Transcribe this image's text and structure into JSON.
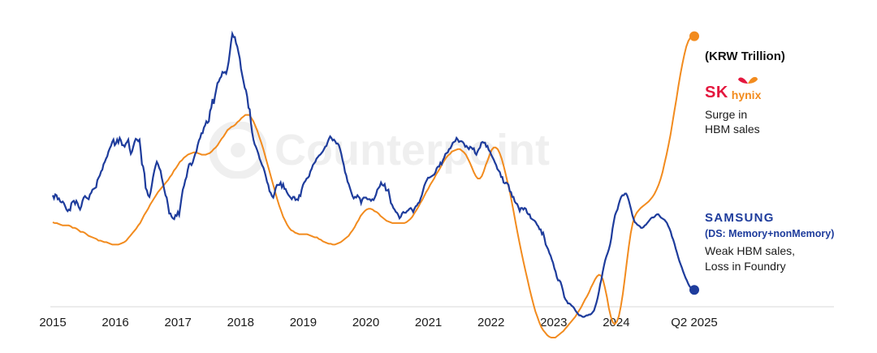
{
  "chart_data": {
    "type": "line",
    "unit_label": "(KRW Trillion)",
    "x_tick_labels": [
      "2015",
      "2016",
      "2017",
      "2018",
      "2019",
      "2020",
      "2021",
      "2022",
      "2023",
      "2024",
      "Q2 2025"
    ],
    "grid": false,
    "series": [
      {
        "name": "SAMSUNG",
        "sub_label": "(DS: Memory+nonMemory)",
        "note_lines": [
          "Weak HBM sales,",
          "Loss in Foundry"
        ],
        "color": "#1e3c9c",
        "values": [
          0.3,
          0.26,
          0.31,
          0.3,
          0.25,
          0.26,
          0.22,
          0.21,
          0.22,
          0.2,
          0.16,
          0.12,
          0.1,
          0.12,
          0.11,
          0.2,
          0.22,
          0.23,
          0.19,
          0.23,
          0.2,
          0.15,
          0.12,
          0.16,
          0.23,
          0.27,
          0.29,
          0.27,
          0.26,
          0.25,
          0.31,
          0.33,
          0.37,
          0.38,
          0.39,
          0.4,
          0.49,
          0.52,
          0.55,
          0.6,
          0.62,
          0.69,
          0.72,
          0.76,
          0.79,
          0.85,
          0.89,
          0.92,
          0.97,
          1.0,
          0.93,
          0.95,
          1.0,
          0.96,
          1.02,
          0.99,
          0.93,
          0.93,
          0.91,
          0.95,
          0.97,
          1.0,
          0.89,
          0.82,
          0.85,
          0.91,
          0.97,
          1.01,
          1.0,
          0.98,
          1.0,
          0.86,
          0.69,
          0.66,
          0.57,
          0.39,
          0.36,
          0.3,
          0.28,
          0.34,
          0.43,
          0.53,
          0.61,
          0.67,
          0.72,
          0.69,
          0.64,
          0.61,
          0.52,
          0.45,
          0.37,
          0.3,
          0.27,
          0.18,
          0.07,
          0.07,
          0.03,
          0.01,
          0.0,
          0.05,
          0.04,
          0.09,
          0.05,
          0.16,
          0.27,
          0.37,
          0.42,
          0.49,
          0.53,
          0.62,
          0.69,
          0.7,
          0.68,
          0.71,
          0.77,
          0.82,
          0.85,
          0.93,
          0.99,
          1.02,
          1.08,
          1.08,
          1.15,
          1.18,
          1.23,
          1.21,
          1.23,
          1.36,
          1.4,
          1.51,
          1.45,
          1.55,
          1.63,
          1.71,
          1.73,
          1.77,
          1.79,
          1.85,
          1.84,
          1.85,
          1.83,
          1.89,
          1.98,
          2.1,
          2.23,
          2.33,
          2.29,
          2.29,
          2.21,
          2.17,
          2.09,
          2.02,
          1.89,
          1.81,
          1.73,
          1.65,
          1.62,
          1.54,
          1.4,
          1.38,
          1.21,
          1.09,
          1.0,
          0.94,
          0.91,
          0.87,
          0.82,
          0.76,
          0.72,
          0.68,
          0.65,
          0.6,
          0.54,
          0.47,
          0.43,
          0.35,
          0.33,
          0.29,
          0.27,
          0.32,
          0.39,
          0.43,
          0.43,
          0.43,
          0.46,
          0.4,
          0.44,
          0.38,
          0.38,
          0.34,
          0.31,
          0.29,
          0.27,
          0.25,
          0.28,
          0.28,
          0.24,
          0.25,
          0.24,
          0.3,
          0.29,
          0.37,
          0.43,
          0.46,
          0.48,
          0.51,
          0.52,
          0.54,
          0.6,
          0.63,
          0.68,
          0.7,
          0.72,
          0.76,
          0.78,
          0.8,
          0.81,
          0.83,
          0.85,
          0.88,
          0.91,
          0.92,
          0.97,
          1.01,
          1.04,
          1.02,
          0.99,
          1.0,
          0.98,
          0.95,
          0.95,
          0.93,
          0.88,
          0.82,
          0.74,
          0.68,
          0.59,
          0.55,
          0.47,
          0.44,
          0.39,
          0.34,
          0.29,
          0.26,
          0.28,
          0.27,
          0.3,
          0.28,
          0.26,
          0.2,
          0.25,
          0.27,
          0.27,
          0.27,
          0.25,
          0.25,
          0.25,
          0.23,
          0.25,
          0.24,
          0.27,
          0.31,
          0.37,
          0.39,
          0.41,
          0.46,
          0.43,
          0.42,
          0.44,
          0.36,
          0.36,
          0.37,
          0.29,
          0.2,
          0.18,
          0.14,
          0.12,
          0.09,
          0.08,
          0.05,
          0.01,
          0.03,
          0.07,
          0.09,
          0.08,
          0.08,
          0.1,
          0.11,
          0.13,
          0.14,
          0.12,
          0.09,
          0.13,
          0.16,
          0.17,
          0.2,
          0.21,
          0.26,
          0.3,
          0.36,
          0.42,
          0.46,
          0.49,
          0.52,
          0.52,
          0.53,
          0.54,
          0.55,
          0.56,
          0.59,
          0.64,
          0.66,
          0.66,
          0.71,
          0.69,
          0.74,
          0.77,
          0.82,
          0.83,
          0.84,
          0.88,
          0.89,
          0.92,
          0.96,
          0.97,
          0.98,
          1.02,
          1.0,
          0.97,
          0.98,
          0.98,
          0.97,
          0.95,
          0.91,
          0.92,
          0.9,
          0.88,
          0.91,
          0.9,
          0.88,
          0.89,
          0.83,
          0.81,
          0.85,
          0.88,
          0.9,
          0.96,
          0.97,
          0.96,
          0.96,
          0.91,
          0.92,
          0.87,
          0.85,
          0.81,
          0.78,
          0.75,
          0.71,
          0.68,
          0.63,
          0.61,
          0.59,
          0.53,
          0.53,
          0.46,
          0.45,
          0.46,
          0.45,
          0.43,
          0.35,
          0.34,
          0.28,
          0.28,
          0.22,
          0.2,
          0.19,
          0.15,
          0.1,
          0.14,
          0.14,
          0.12,
          0.14,
          0.13,
          0.08,
          0.06,
          0.06,
          0.01,
          0.0,
          -0.01,
          -0.02,
          -0.04,
          -0.07,
          -0.09,
          -0.13,
          -0.13,
          -0.19,
          -0.17,
          -0.24,
          -0.32,
          -0.35,
          -0.38,
          -0.43,
          -0.46,
          -0.51,
          -0.55,
          -0.62,
          -0.66,
          -0.73,
          -0.77,
          -0.77,
          -0.79,
          -0.84,
          -0.9,
          -0.98,
          -1.01,
          -1.03,
          -1.06,
          -1.06,
          -1.07,
          -1.09,
          -1.1,
          -1.12,
          -1.15,
          -1.17,
          -1.19,
          -1.21,
          -1.21,
          -1.22,
          -1.23,
          -1.23,
          -1.22,
          -1.21,
          -1.21,
          -1.2,
          -1.2,
          -1.19,
          -1.17,
          -1.15,
          -1.1,
          -1.05,
          -0.99,
          -0.91,
          -0.82,
          -0.76,
          -0.67,
          -0.59,
          -0.52,
          -0.47,
          -0.43,
          -0.38,
          -0.32,
          -0.24,
          -0.12,
          -0.03,
          0.05,
          0.09,
          0.12,
          0.19,
          0.24,
          0.28,
          0.3,
          0.3,
          0.32,
          0.32,
          0.29,
          0.24,
          0.18,
          0.12,
          0.05,
          0.0,
          -0.04,
          -0.05,
          -0.07,
          -0.08,
          -0.09,
          -0.11,
          -0.11,
          -0.1,
          -0.08,
          -0.07,
          -0.05,
          -0.03,
          -0.01,
          0.01,
          0.02,
          0.02,
          0.03,
          0.05,
          0.06,
          0.06,
          0.04,
          0.02,
          0.01,
          0.0,
          -0.01,
          -0.03,
          -0.05,
          -0.09,
          -0.12,
          -0.16,
          -0.22,
          -0.26,
          -0.31,
          -0.37,
          -0.42,
          -0.48,
          -0.53,
          -0.57,
          -0.61,
          -0.66,
          -0.7,
          -0.74,
          -0.77,
          -0.81,
          -0.84,
          -0.86,
          -0.87,
          -0.87,
          -0.89
        ]
      },
      {
        "name": "SK hynix",
        "note_lines": [
          "Surge in",
          "HBM sales"
        ],
        "color": "#f28b1e",
        "values": [
          -0.04,
          -0.05,
          -0.05,
          -0.06,
          -0.07,
          -0.08,
          -0.08,
          -0.08,
          -0.08,
          -0.09,
          -0.11,
          -0.11,
          -0.12,
          -0.14,
          -0.16,
          -0.16,
          -0.17,
          -0.19,
          -0.21,
          -0.22,
          -0.23,
          -0.24,
          -0.25,
          -0.27,
          -0.27,
          -0.28,
          -0.29,
          -0.29,
          -0.3,
          -0.31,
          -0.32,
          -0.32,
          -0.32,
          -0.32,
          -0.31,
          -0.3,
          -0.29,
          -0.27,
          -0.24,
          -0.21,
          -0.18,
          -0.15,
          -0.12,
          -0.08,
          -0.05,
          0.0,
          0.05,
          0.09,
          0.13,
          0.18,
          0.22,
          0.26,
          0.3,
          0.34,
          0.37,
          0.4,
          0.43,
          0.46,
          0.49,
          0.53,
          0.56,
          0.61,
          0.64,
          0.68,
          0.72,
          0.74,
          0.77,
          0.79,
          0.81,
          0.82,
          0.83,
          0.84,
          0.84,
          0.83,
          0.82,
          0.81,
          0.81,
          0.81,
          0.82,
          0.83,
          0.85,
          0.88,
          0.9,
          0.93,
          0.97,
          1.01,
          1.04,
          1.08,
          1.12,
          1.14,
          1.16,
          1.17,
          1.19,
          1.22,
          1.24,
          1.27,
          1.29,
          1.31,
          1.31,
          1.31,
          1.27,
          1.23,
          1.17,
          1.11,
          1.03,
          0.96,
          0.88,
          0.79,
          0.7,
          0.61,
          0.52,
          0.43,
          0.34,
          0.25,
          0.17,
          0.1,
          0.03,
          -0.02,
          -0.07,
          -0.11,
          -0.14,
          -0.15,
          -0.17,
          -0.18,
          -0.19,
          -0.19,
          -0.19,
          -0.19,
          -0.19,
          -0.2,
          -0.21,
          -0.22,
          -0.23,
          -0.23,
          -0.25,
          -0.26,
          -0.28,
          -0.29,
          -0.3,
          -0.31,
          -0.31,
          -0.32,
          -0.32,
          -0.31,
          -0.3,
          -0.29,
          -0.27,
          -0.25,
          -0.23,
          -0.21,
          -0.17,
          -0.14,
          -0.1,
          -0.05,
          -0.01,
          0.04,
          0.07,
          0.1,
          0.12,
          0.13,
          0.13,
          0.12,
          0.1,
          0.09,
          0.07,
          0.04,
          0.02,
          0.0,
          -0.02,
          -0.03,
          -0.04,
          -0.05,
          -0.05,
          -0.05,
          -0.05,
          -0.05,
          -0.05,
          -0.05,
          -0.04,
          -0.02,
          0.0,
          0.03,
          0.07,
          0.11,
          0.15,
          0.2,
          0.24,
          0.29,
          0.34,
          0.38,
          0.43,
          0.47,
          0.51,
          0.56,
          0.6,
          0.64,
          0.69,
          0.73,
          0.77,
          0.8,
          0.82,
          0.85,
          0.86,
          0.87,
          0.88,
          0.88,
          0.86,
          0.84,
          0.81,
          0.76,
          0.71,
          0.65,
          0.59,
          0.54,
          0.51,
          0.51,
          0.54,
          0.6,
          0.68,
          0.74,
          0.81,
          0.87,
          0.9,
          0.9,
          0.88,
          0.83,
          0.76,
          0.67,
          0.57,
          0.46,
          0.36,
          0.23,
          0.1,
          -0.04,
          -0.17,
          -0.3,
          -0.42,
          -0.54,
          -0.65,
          -0.76,
          -0.87,
          -0.97,
          -1.07,
          -1.16,
          -1.23,
          -1.3,
          -1.36,
          -1.4,
          -1.43,
          -1.46,
          -1.48,
          -1.49,
          -1.49,
          -1.49,
          -1.47,
          -1.45,
          -1.43,
          -1.41,
          -1.38,
          -1.35,
          -1.32,
          -1.29,
          -1.26,
          -1.23,
          -1.19,
          -1.15,
          -1.11,
          -1.06,
          -1.01,
          -0.97,
          -0.92,
          -0.86,
          -0.81,
          -0.76,
          -0.72,
          -0.7,
          -0.71,
          -0.76,
          -0.86,
          -0.98,
          -1.12,
          -1.23,
          -1.3,
          -1.32,
          -1.29,
          -1.22,
          -1.1,
          -0.94,
          -0.75,
          -0.55,
          -0.35,
          -0.18,
          -0.05,
          0.03,
          0.08,
          0.11,
          0.14,
          0.16,
          0.18,
          0.2,
          0.22,
          0.25,
          0.28,
          0.32,
          0.37,
          0.43,
          0.5,
          0.59,
          0.7,
          0.81,
          0.93,
          1.06,
          1.21,
          1.36,
          1.51,
          1.67,
          1.82,
          1.95,
          2.07,
          2.17,
          2.24,
          2.28,
          2.3,
          2.3
        ]
      }
    ]
  },
  "logos": {
    "sk_letters": "SK",
    "hynix_word": "hynix"
  },
  "watermark_text": "Counterpoint"
}
